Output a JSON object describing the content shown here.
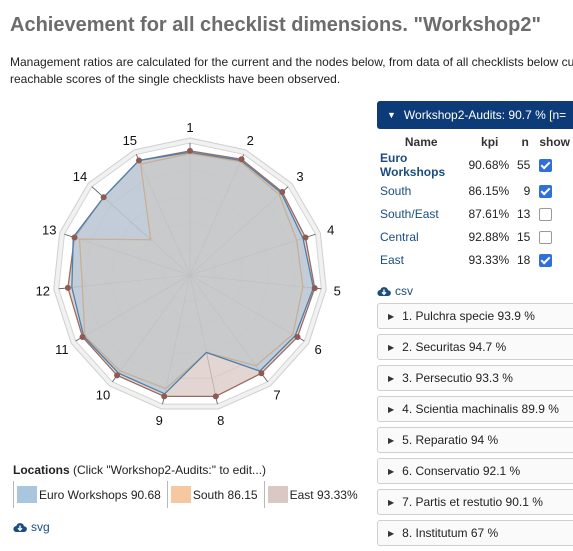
{
  "title": "Achievement for all checklist dimensions. \"Workshop2\"",
  "intro": {
    "line1": "Management ratios are calculated for the current and the nodes below, from data of all checklists below cu",
    "line2": "reachable scores of the single checklists have been observed."
  },
  "chart_data": {
    "type": "radar",
    "axes": [
      "1",
      "2",
      "3",
      "4",
      "5",
      "6",
      "7",
      "8",
      "9",
      "10",
      "11",
      "12",
      "13",
      "14",
      "15"
    ],
    "range": [
      0,
      100
    ],
    "grid_rings": 5,
    "series": [
      {
        "name": "Euro Workshops",
        "color": "#a9c6de",
        "stroke": "#4f7fa8",
        "values": [
          93,
          95,
          93,
          90,
          94,
          92,
          90,
          60,
          92,
          92,
          93,
          90,
          93,
          88,
          95
        ]
      },
      {
        "name": "South",
        "color": "#f6c8a0",
        "stroke": "#f0923a",
        "values": [
          92,
          94,
          91,
          85,
          86,
          90,
          85,
          60,
          88,
          90,
          92,
          82,
          88,
          40,
          92
        ]
      },
      {
        "name": "East",
        "color": "#d9c8c3",
        "stroke": "#9b6b63",
        "values": [
          94,
          96,
          94,
          92,
          95,
          94,
          92,
          94,
          94,
          94,
          94,
          93,
          92,
          88,
          95
        ]
      }
    ]
  },
  "legend": {
    "title": "Locations",
    "hint": " (Click \"Workshop2-Audits:\" to edit...)",
    "items": [
      {
        "label": "Euro Workshops 90.68",
        "color": "#a9c6de"
      },
      {
        "label": "South 86.15",
        "color": "#f6c8a0"
      },
      {
        "label": "East  93.33%",
        "color": "#d9c8c3"
      }
    ]
  },
  "svg_link": "svg",
  "panel": {
    "header": "Workshop2-Audits:  90.7 %  [n=",
    "columns": {
      "name": "Name",
      "kpi": "kpi",
      "n": "n",
      "show": "show"
    },
    "rows": [
      {
        "name": "Euro Workshops",
        "kpi": "90.68%",
        "n": "55",
        "show": true
      },
      {
        "name": "South",
        "kpi": "86.15%",
        "n": "9",
        "show": true
      },
      {
        "name": "South/East",
        "kpi": "87.61%",
        "n": "13",
        "show": false
      },
      {
        "name": "Central",
        "kpi": "92.88%",
        "n": "15",
        "show": false
      },
      {
        "name": "East",
        "kpi": "93.33%",
        "n": "18",
        "show": true
      }
    ],
    "csv_link": "csv",
    "sections": [
      "1. Pulchra specie 93.9 %",
      "2. Securitas 94.7 %",
      "3. Persecutio 93.3 %",
      "4. Scientia machinalis 89.9 %",
      "5. Reparatio 94 %",
      "6. Conservatio 92.1 %",
      "7. Partis et restutio 90.1 %",
      "8. Institutum 67 %"
    ]
  }
}
